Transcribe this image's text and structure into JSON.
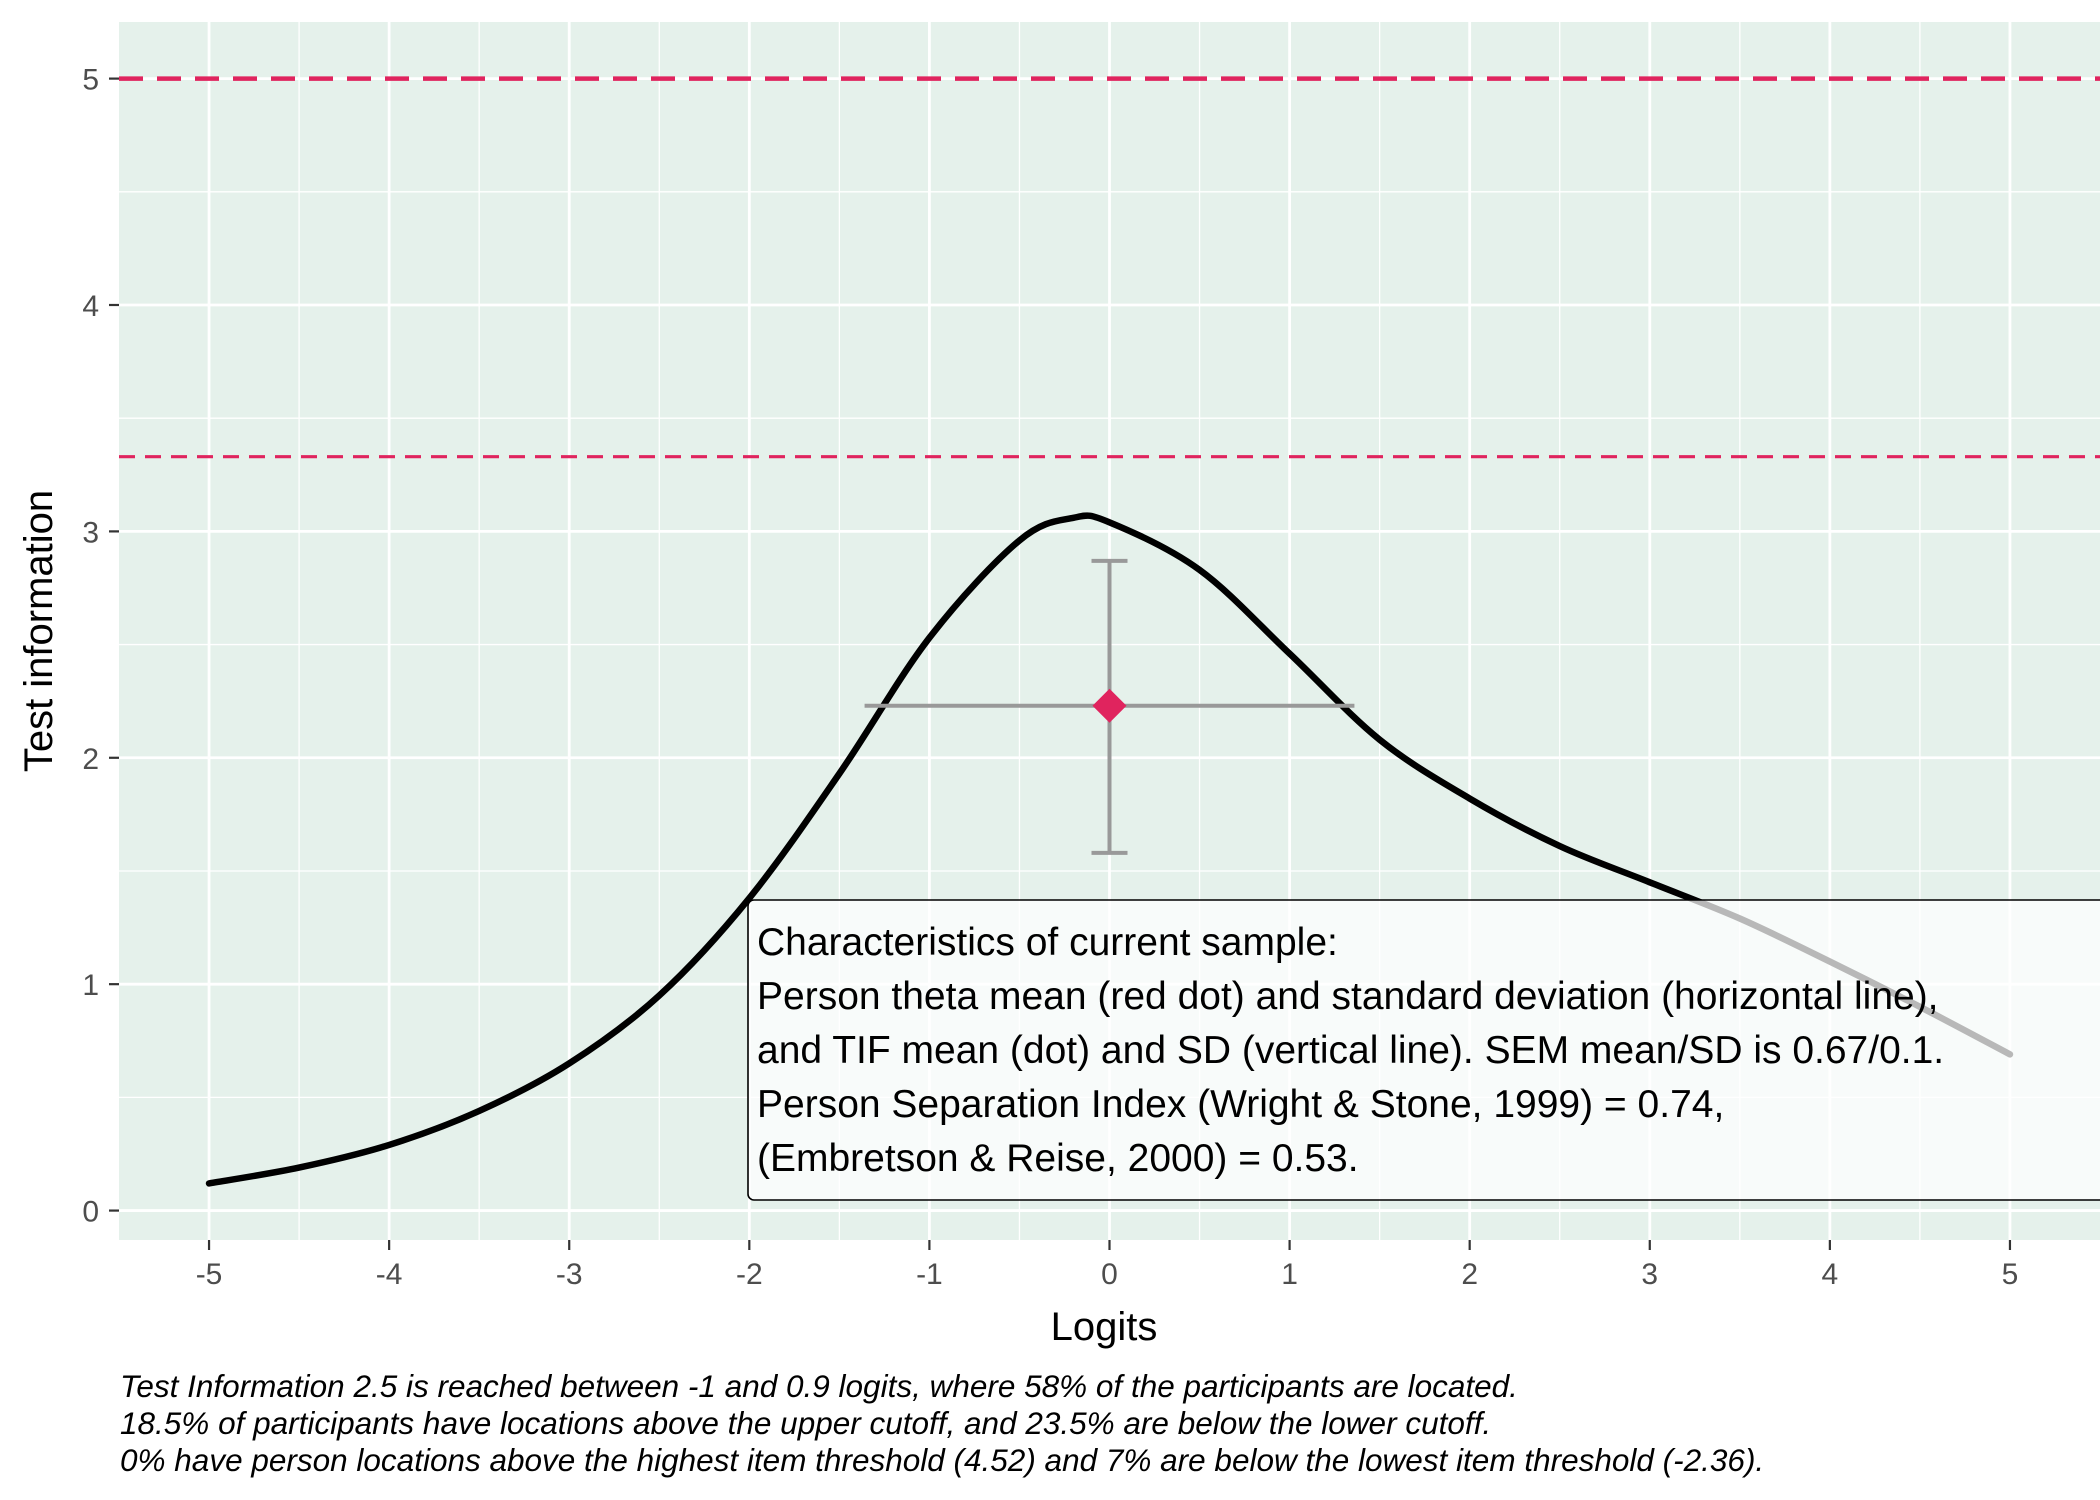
{
  "chart_data": {
    "type": "line",
    "xlabel": "Logits",
    "ylabel": "Test information",
    "xlim": [
      -5.5,
      5.5
    ],
    "ylim": [
      -0.13,
      5.25
    ],
    "x_ticks": [
      -5,
      -4,
      -3,
      -2,
      -1,
      0,
      1,
      2,
      3,
      4,
      5
    ],
    "y_ticks": [
      0,
      1,
      2,
      3,
      4,
      5
    ],
    "grid": true,
    "background": "#e5f1eb",
    "series": [
      {
        "color": "#000000",
        "x": [
          -5,
          -4.5,
          -4,
          -3.5,
          -3,
          -2.5,
          -2,
          -1.5,
          -1,
          -0.5,
          -0.2,
          0,
          0.5,
          1,
          1.5,
          2,
          2.5,
          3,
          3.5,
          4,
          4.5,
          5
        ],
        "y": [
          0.12,
          0.19,
          0.29,
          0.44,
          0.65,
          0.95,
          1.38,
          1.93,
          2.53,
          2.96,
          3.06,
          3.04,
          2.83,
          2.46,
          2.08,
          1.82,
          1.61,
          1.45,
          1.29,
          1.1,
          0.9,
          0.69
        ]
      }
    ],
    "reference_lines": [
      {
        "y": 5,
        "color": "#e0245e",
        "style": "dashed"
      },
      {
        "y": 3.33,
        "color": "#e0245e",
        "style": "dashed"
      }
    ],
    "point": {
      "x": 0,
      "y": 2.23,
      "color": "#e0245e",
      "shape": "diamond"
    },
    "error_bars": {
      "horizontal": [
        -1.36,
        1.36
      ],
      "vertical": [
        1.58,
        2.87
      ],
      "color": "#999999"
    },
    "annotation": {
      "lines": [
        "Characteristics of current sample:",
        "Person theta mean (red dot) and standard deviation (horizontal line),",
        "and TIF mean (dot) and SD (vertical line). SEM mean/SD is 0.67/0.1.",
        "Person Separation Index (Wright & Stone, 1999) = 0.74,",
        "(Embretson & Reise, 2000) = 0.53."
      ]
    }
  },
  "caption": {
    "lines": [
      "Test Information 2.5 is reached between -1 and 0.9 logits, where 58% of the participants are located.",
      "18.5% of participants have locations above the upper cutoff, and 23.5% are below the lower cutoff.",
      "0% have person locations above the highest item threshold (4.52) and 7% are below the lowest item threshold (-2.36)."
    ]
  }
}
